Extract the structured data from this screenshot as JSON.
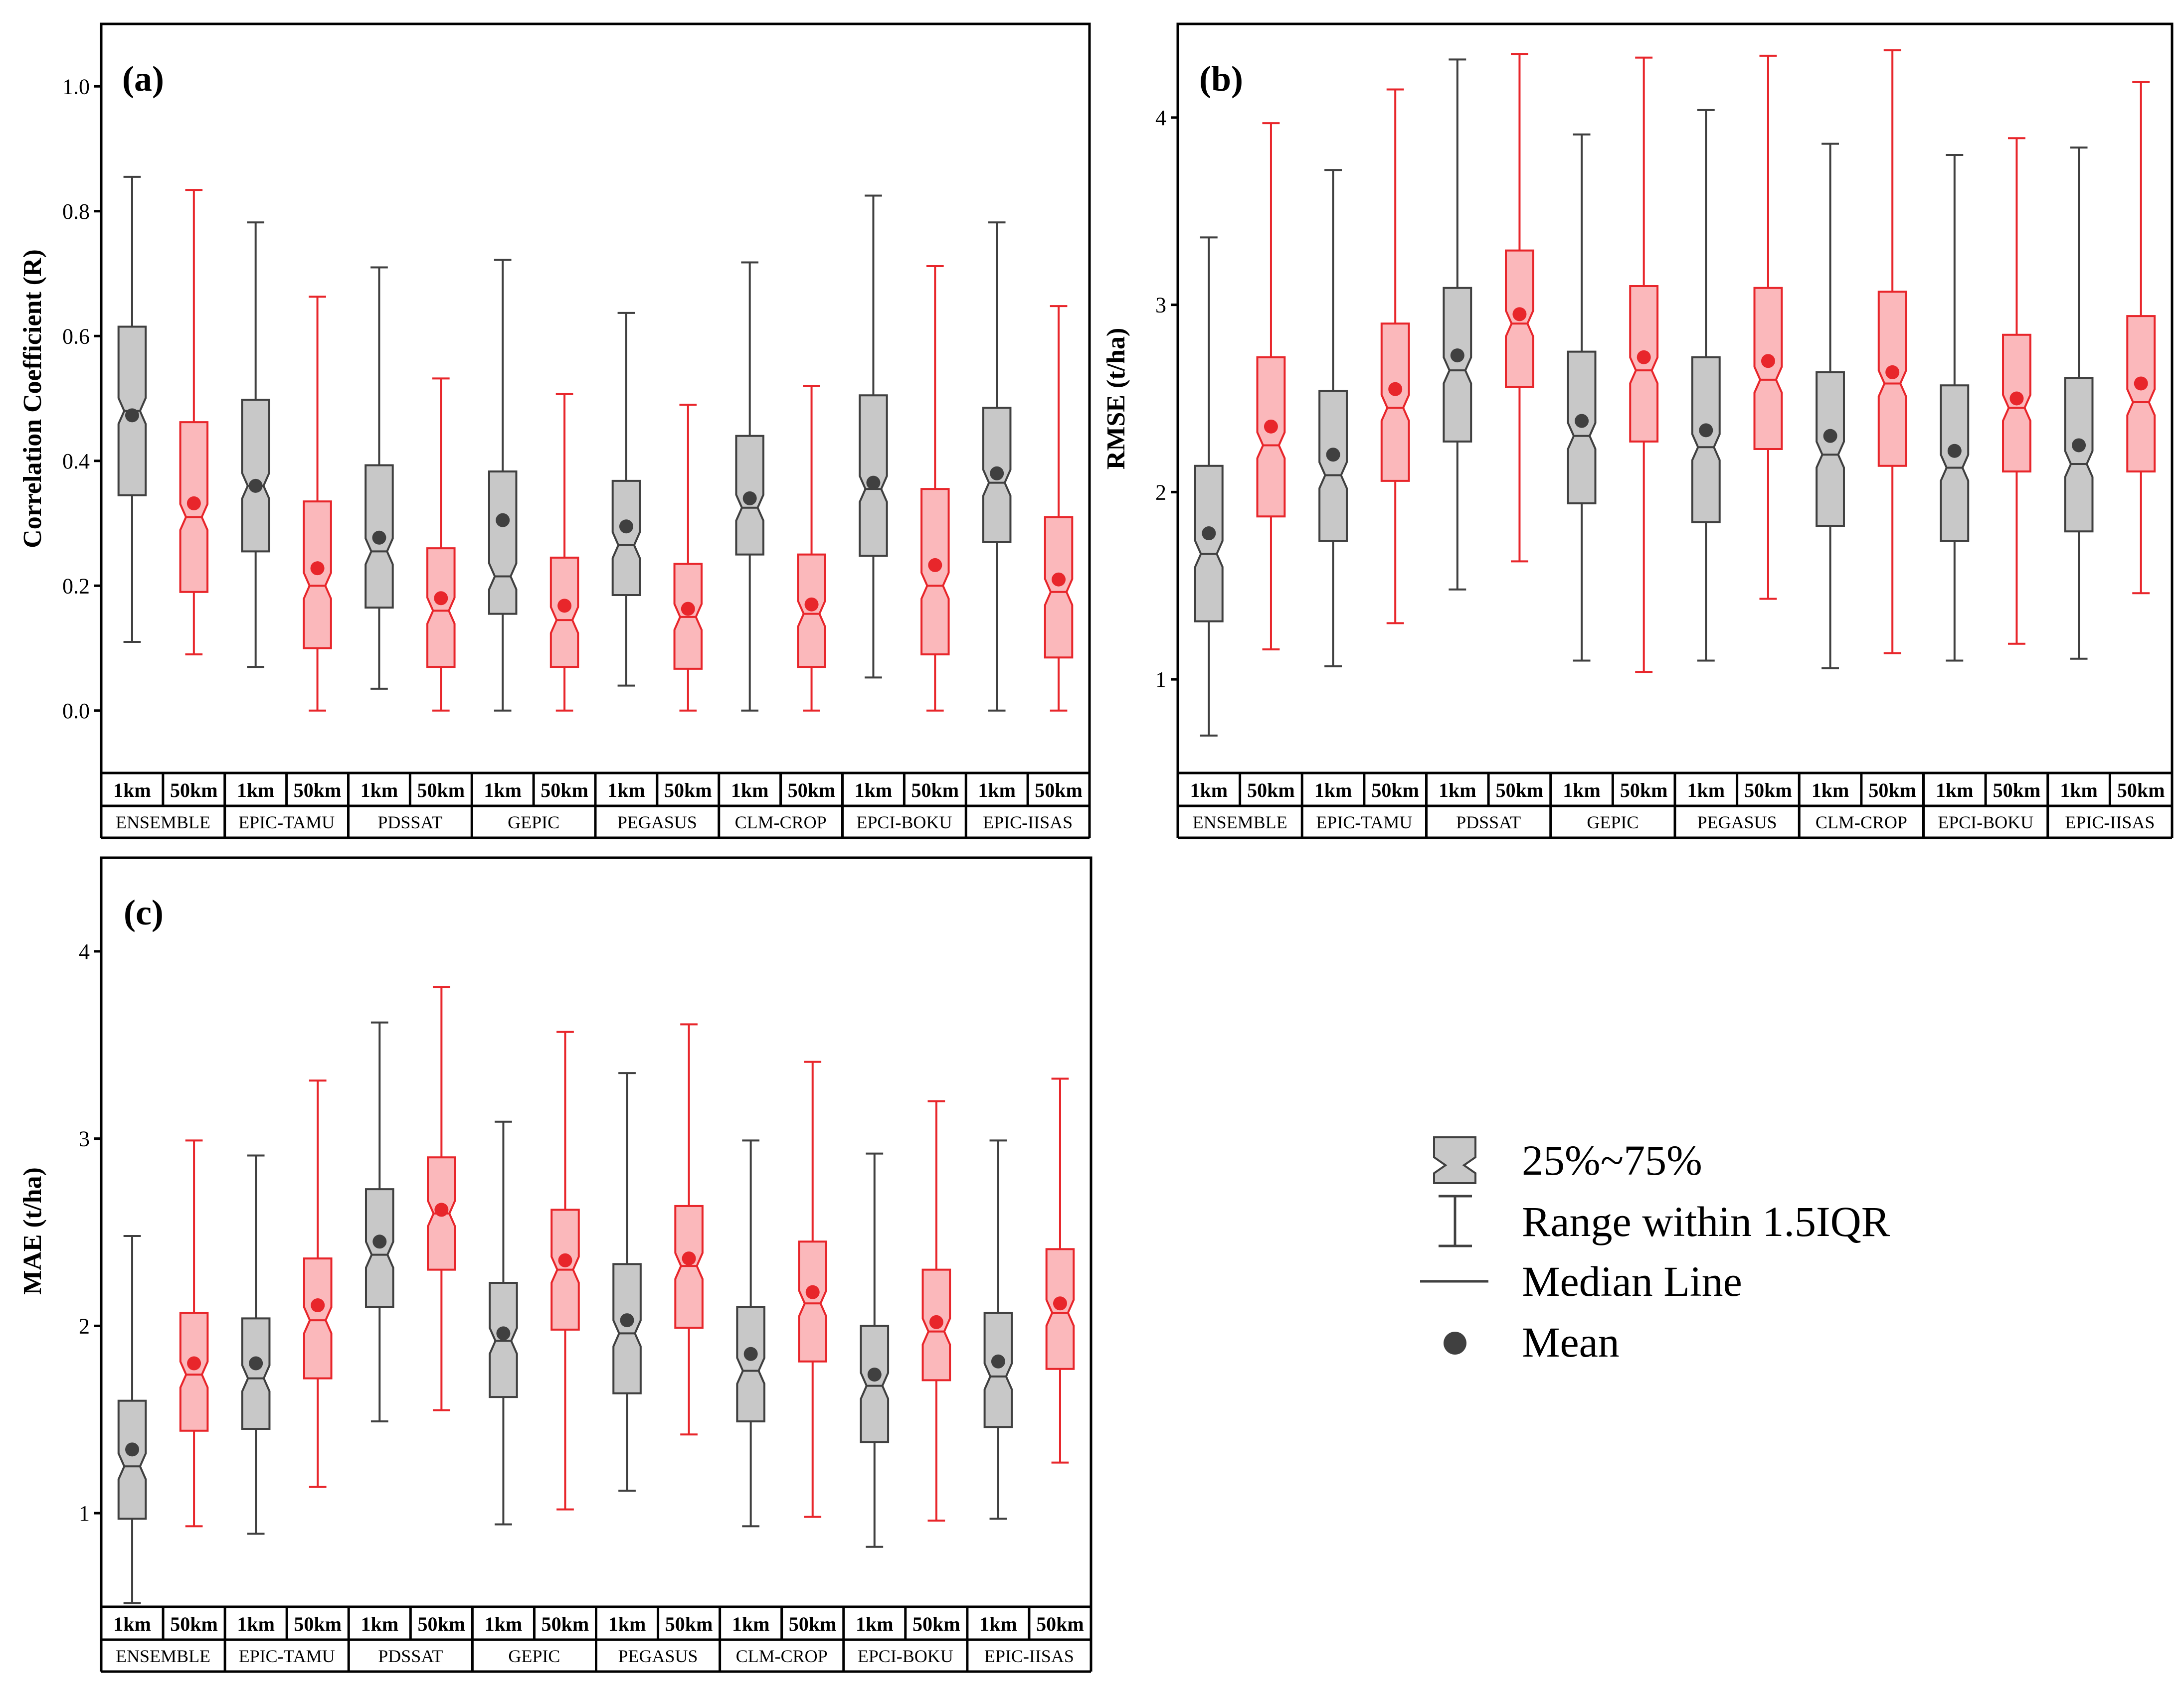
{
  "legend": {
    "box_label": "25%~75%",
    "whisker_label": "Range within 1.5IQR",
    "median_label": "Median Line",
    "mean_label": "Mean"
  },
  "colors": {
    "one_km_edge": "#404040",
    "one_km_fill": "#c8c8c8",
    "one_km_mean": "#404040",
    "fifty_km_edge": "#e8262b",
    "fifty_km_fill": "#fbb8bb",
    "fifty_km_mean": "#e8262b"
  },
  "chart_data": [
    {
      "panel": "(a)",
      "type": "box",
      "ylabel": "Correlation Coefficient (R)",
      "ylim": [
        -0.1,
        1.1
      ],
      "yticks": [
        "0.0",
        "0.2",
        "0.4",
        "0.6",
        "0.8",
        "1.0"
      ],
      "yticks_values": [
        0.0,
        0.2,
        0.4,
        0.6,
        0.8,
        1.0
      ],
      "models": [
        "ENSEMBLE",
        "EPIC-TAMU",
        "PDSSAT",
        "GEPIC",
        "PEGASUS",
        "CLM-CROP",
        "EPCI-BOKU",
        "EPIC-IISAS"
      ],
      "resolutions": [
        "1km",
        "50km"
      ],
      "series": [
        {
          "name": "1km",
          "min": [
            0.11,
            0.07,
            0.035,
            0.0,
            0.04,
            0.0,
            0.053,
            0.0
          ],
          "q1": [
            0.345,
            0.255,
            0.165,
            0.155,
            0.185,
            0.25,
            0.248,
            0.27
          ],
          "median": [
            0.48,
            0.36,
            0.255,
            0.215,
            0.265,
            0.325,
            0.355,
            0.365
          ],
          "q3": [
            0.615,
            0.498,
            0.393,
            0.383,
            0.368,
            0.44,
            0.505,
            0.485
          ],
          "max": [
            0.855,
            0.782,
            0.71,
            0.722,
            0.637,
            0.718,
            0.825,
            0.782
          ],
          "mean": [
            0.473,
            0.36,
            0.277,
            0.305,
            0.295,
            0.34,
            0.365,
            0.38
          ]
        },
        {
          "name": "50km",
          "min": [
            0.09,
            0.0,
            0.0,
            0.0,
            0.0,
            0.0,
            0.0,
            0.0
          ],
          "q1": [
            0.19,
            0.1,
            0.07,
            0.07,
            0.067,
            0.07,
            0.09,
            0.085
          ],
          "median": [
            0.31,
            0.2,
            0.16,
            0.145,
            0.15,
            0.155,
            0.2,
            0.19
          ],
          "q3": [
            0.462,
            0.335,
            0.26,
            0.245,
            0.235,
            0.25,
            0.355,
            0.31
          ],
          "max": [
            0.834,
            0.663,
            0.532,
            0.507,
            0.49,
            0.52,
            0.712,
            0.648
          ],
          "mean": [
            0.332,
            0.228,
            0.18,
            0.168,
            0.163,
            0.17,
            0.233,
            0.21
          ]
        }
      ]
    },
    {
      "panel": "(b)",
      "type": "box",
      "ylabel": "RMSE (t/ha)",
      "ylim": [
        0.5,
        4.5
      ],
      "yticks": [
        "1",
        "2",
        "3",
        "4"
      ],
      "yticks_values": [
        1,
        2,
        3,
        4
      ],
      "models": [
        "ENSEMBLE",
        "EPIC-TAMU",
        "PDSSAT",
        "GEPIC",
        "PEGASUS",
        "CLM-CROP",
        "EPCI-BOKU",
        "EPIC-IISAS"
      ],
      "resolutions": [
        "1km",
        "50km"
      ],
      "series": [
        {
          "name": "1km",
          "min": [
            0.7,
            1.07,
            1.48,
            1.1,
            1.1,
            1.06,
            1.1,
            1.11
          ],
          "q1": [
            1.31,
            1.74,
            2.27,
            1.94,
            1.84,
            1.82,
            1.74,
            1.79
          ],
          "median": [
            1.67,
            2.09,
            2.65,
            2.3,
            2.24,
            2.2,
            2.13,
            2.15
          ],
          "q3": [
            2.14,
            2.54,
            3.09,
            2.75,
            2.72,
            2.64,
            2.57,
            2.61
          ],
          "max": [
            3.36,
            3.72,
            4.31,
            3.91,
            4.04,
            3.86,
            3.8,
            3.84
          ],
          "mean": [
            1.78,
            2.2,
            2.73,
            2.38,
            2.33,
            2.3,
            2.22,
            2.25
          ]
        },
        {
          "name": "50km",
          "min": [
            1.16,
            1.3,
            1.63,
            1.04,
            1.43,
            1.14,
            1.19,
            1.46
          ],
          "q1": [
            1.87,
            2.06,
            2.56,
            2.27,
            2.23,
            2.14,
            2.11,
            2.11
          ],
          "median": [
            2.25,
            2.45,
            2.9,
            2.65,
            2.6,
            2.58,
            2.45,
            2.48
          ],
          "q3": [
            2.72,
            2.9,
            3.29,
            3.1,
            3.09,
            3.07,
            2.84,
            2.94
          ],
          "max": [
            3.97,
            4.15,
            4.34,
            4.32,
            4.33,
            4.36,
            3.89,
            4.19
          ],
          "mean": [
            2.35,
            2.55,
            2.95,
            2.72,
            2.7,
            2.64,
            2.5,
            2.58
          ]
        }
      ]
    },
    {
      "panel": "(c)",
      "type": "box",
      "ylabel": "MAE (t/ha)",
      "ylim": [
        0.5,
        4.5
      ],
      "yticks": [
        "1",
        "2",
        "3",
        "4"
      ],
      "yticks_values": [
        1,
        2,
        3,
        4
      ],
      "models": [
        "ENSEMBLE",
        "EPIC-TAMU",
        "PDSSAT",
        "GEPIC",
        "PEGASUS",
        "CLM-CROP",
        "EPCI-BOKU",
        "EPIC-IISAS"
      ],
      "resolutions": [
        "1km",
        "50km"
      ],
      "series": [
        {
          "name": "1km",
          "min": [
            0.52,
            0.89,
            1.49,
            0.94,
            1.12,
            0.93,
            0.82,
            0.97
          ],
          "q1": [
            0.97,
            1.45,
            2.1,
            1.62,
            1.64,
            1.49,
            1.38,
            1.46
          ],
          "median": [
            1.25,
            1.72,
            2.38,
            1.92,
            1.96,
            1.76,
            1.68,
            1.73
          ],
          "q3": [
            1.6,
            2.04,
            2.73,
            2.23,
            2.33,
            2.1,
            2.0,
            2.07
          ],
          "max": [
            2.48,
            2.91,
            3.62,
            3.09,
            3.35,
            2.99,
            2.92,
            2.99
          ],
          "mean": [
            1.34,
            1.8,
            2.45,
            1.96,
            2.03,
            1.85,
            1.74,
            1.81
          ]
        },
        {
          "name": "50km",
          "min": [
            0.93,
            1.14,
            1.55,
            1.02,
            1.42,
            0.98,
            0.96,
            1.27
          ],
          "q1": [
            1.44,
            1.72,
            2.3,
            1.98,
            1.99,
            1.81,
            1.71,
            1.77
          ],
          "median": [
            1.74,
            2.03,
            2.6,
            2.3,
            2.32,
            2.12,
            1.97,
            2.07
          ],
          "q3": [
            2.07,
            2.36,
            2.9,
            2.62,
            2.64,
            2.45,
            2.3,
            2.41
          ],
          "max": [
            2.99,
            3.31,
            3.81,
            3.57,
            3.61,
            3.41,
            3.2,
            3.32
          ],
          "mean": [
            1.8,
            2.11,
            2.62,
            2.35,
            2.36,
            2.18,
            2.02,
            2.12
          ]
        }
      ]
    }
  ]
}
